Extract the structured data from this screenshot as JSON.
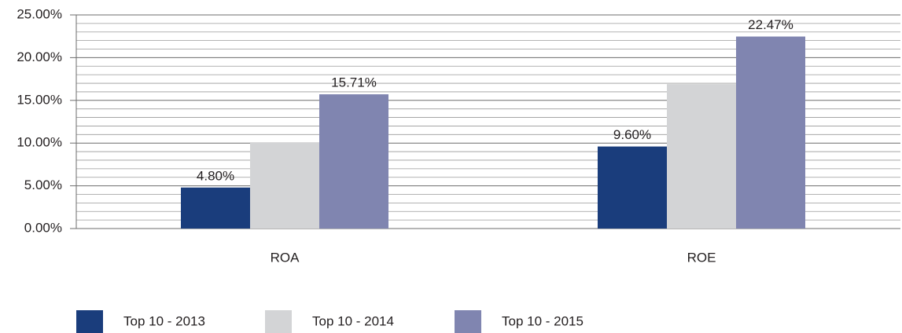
{
  "chart_data": {
    "type": "bar",
    "categories": [
      "ROA",
      "ROE"
    ],
    "series": [
      {
        "name": "Top 10 - 2013",
        "color": "#1a3d7c",
        "values": [
          4.8,
          9.6
        ],
        "value_labels": [
          "4.80%",
          "9.60%"
        ]
      },
      {
        "name": "Top 10 - 2014",
        "color": "#d3d4d6",
        "values": [
          10.1,
          16.9
        ]
      },
      {
        "name": "Top 10 - 2015",
        "color": "#8085b0",
        "values": [
          15.71,
          22.47
        ],
        "value_labels": [
          "15.71%",
          "22.47%"
        ]
      }
    ],
    "ylim": [
      0,
      25
    ],
    "yticks": [
      {
        "value": 0,
        "label": "0.00%"
      },
      {
        "value": 5,
        "label": "5.00%"
      },
      {
        "value": 10,
        "label": "10.00%"
      },
      {
        "value": 15,
        "label": "15.00%"
      },
      {
        "value": 20,
        "label": "20.00%"
      },
      {
        "value": 25,
        "label": "25.00%"
      }
    ],
    "yminor": [
      1,
      2,
      3,
      4,
      6,
      7,
      8,
      9,
      11,
      12,
      13,
      14,
      16,
      17,
      18,
      19,
      21,
      22,
      23,
      24
    ],
    "grid": true,
    "legend": "bottom-left"
  }
}
